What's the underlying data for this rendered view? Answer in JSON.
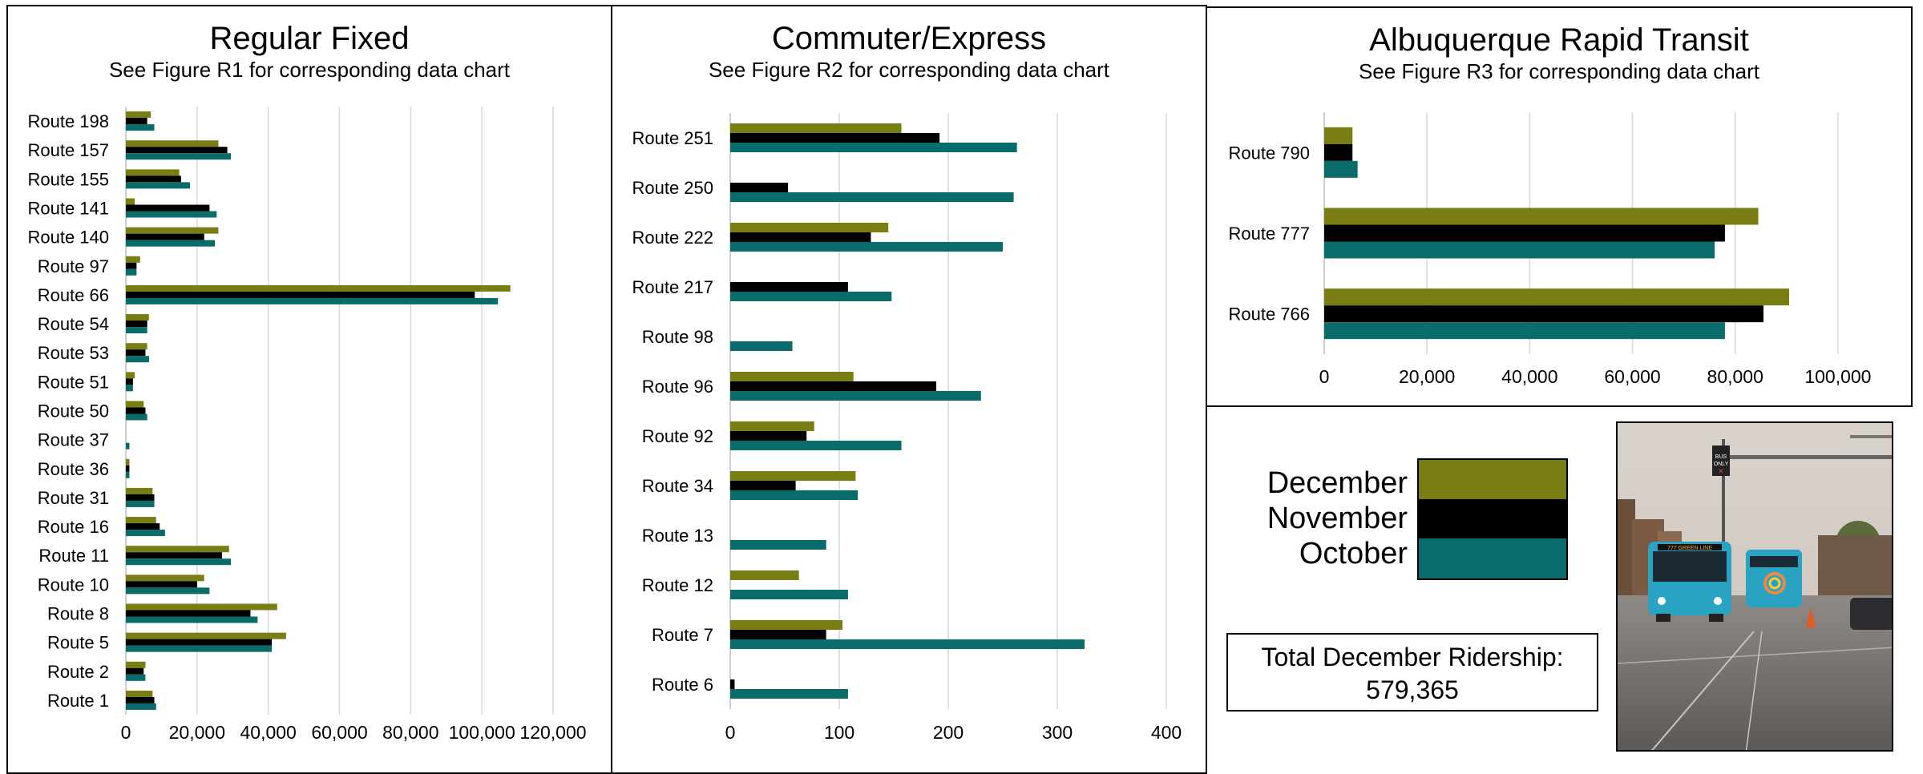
{
  "colors": {
    "december": "#7a7d14",
    "november": "#000000",
    "october": "#0a6b6b"
  },
  "legend": [
    {
      "label": "December",
      "color": "#7a7d14"
    },
    {
      "label": "November",
      "color": "#000000"
    },
    {
      "label": "October",
      "color": "#0a6b6b"
    }
  ],
  "total": {
    "line1": "Total December Ridership:",
    "line2": "579,365"
  },
  "photo": {
    "sign_text": "BUS ONLY",
    "bus_sign": "777 GREEN LINE"
  },
  "chart_data": [
    {
      "type": "bar",
      "orientation": "horizontal",
      "title": "Regular Fixed",
      "subtitle": "See Figure R1 for corresponding data chart",
      "categories": [
        "Route 198",
        "Route 157",
        "Route 155",
        "Route 141",
        "Route 140",
        "Route 97",
        "Route 66",
        "Route 54",
        "Route 53",
        "Route 51",
        "Route 50",
        "Route 37",
        "Route 36",
        "Route 31",
        "Route 16",
        "Route 11",
        "Route 10",
        "Route   8",
        "Route   5",
        "Route   2",
        "Route   1"
      ],
      "series": [
        {
          "name": "December",
          "values": [
            7000,
            26000,
            15000,
            2500,
            26000,
            4000,
            108000,
            6500,
            6000,
            2500,
            5000,
            0,
            1000,
            7500,
            8500,
            29000,
            22000,
            42500,
            45000,
            5500,
            7500
          ]
        },
        {
          "name": "November",
          "values": [
            6000,
            28500,
            15500,
            23500,
            22000,
            3000,
            98000,
            6000,
            5500,
            2000,
            5500,
            0,
            1000,
            8000,
            9500,
            27000,
            20000,
            35000,
            41000,
            5000,
            8000
          ]
        },
        {
          "name": "October",
          "values": [
            8000,
            29500,
            18000,
            25500,
            25000,
            3000,
            104500,
            6000,
            6500,
            2000,
            6000,
            1000,
            1000,
            8000,
            11000,
            29500,
            23500,
            37000,
            41000,
            5500,
            8500
          ]
        }
      ],
      "xticks": [
        "0",
        "20,000",
        "40,000",
        "60,000",
        "80,000",
        "100,000",
        "120,000"
      ],
      "xlim": [
        0,
        120000
      ],
      "grid": true
    },
    {
      "type": "bar",
      "orientation": "horizontal",
      "title": "Commuter/Express",
      "subtitle": "See Figure R2 for corresponding data chart",
      "categories": [
        "Route 251",
        "Route 250",
        "Route 222",
        "Route 217",
        "Route 98",
        "Route 96",
        "Route 92",
        "Route 34",
        "Route 13",
        "Route 12",
        "Route 7",
        "Route 6"
      ],
      "series": [
        {
          "name": "December",
          "values": [
            157,
            0,
            145,
            0,
            0,
            113,
            77,
            115,
            0,
            63,
            103,
            0
          ]
        },
        {
          "name": "November",
          "values": [
            192,
            53,
            129,
            108,
            0,
            189,
            70,
            60,
            0,
            0,
            88,
            4
          ]
        },
        {
          "name": "October",
          "values": [
            263,
            260,
            250,
            148,
            57,
            230,
            157,
            117,
            88,
            108,
            325,
            108
          ]
        }
      ],
      "xticks": [
        "0",
        "100",
        "200",
        "300",
        "400"
      ],
      "xlim": [
        0,
        400
      ],
      "grid": true
    },
    {
      "type": "bar",
      "orientation": "horizontal",
      "title": "Albuquerque Rapid Transit",
      "subtitle": "See Figure R3 for corresponding data chart",
      "categories": [
        "Route 790",
        "Route 777",
        "Route 766"
      ],
      "series": [
        {
          "name": "December",
          "values": [
            5500,
            84500,
            90500
          ]
        },
        {
          "name": "November",
          "values": [
            5500,
            78000,
            85500
          ]
        },
        {
          "name": "October",
          "values": [
            6500,
            76000,
            78000
          ]
        }
      ],
      "xticks": [
        "0",
        "20,000",
        "40,000",
        "60,000",
        "80,000",
        "100,000"
      ],
      "xlim": [
        0,
        110000
      ],
      "grid": true
    }
  ]
}
